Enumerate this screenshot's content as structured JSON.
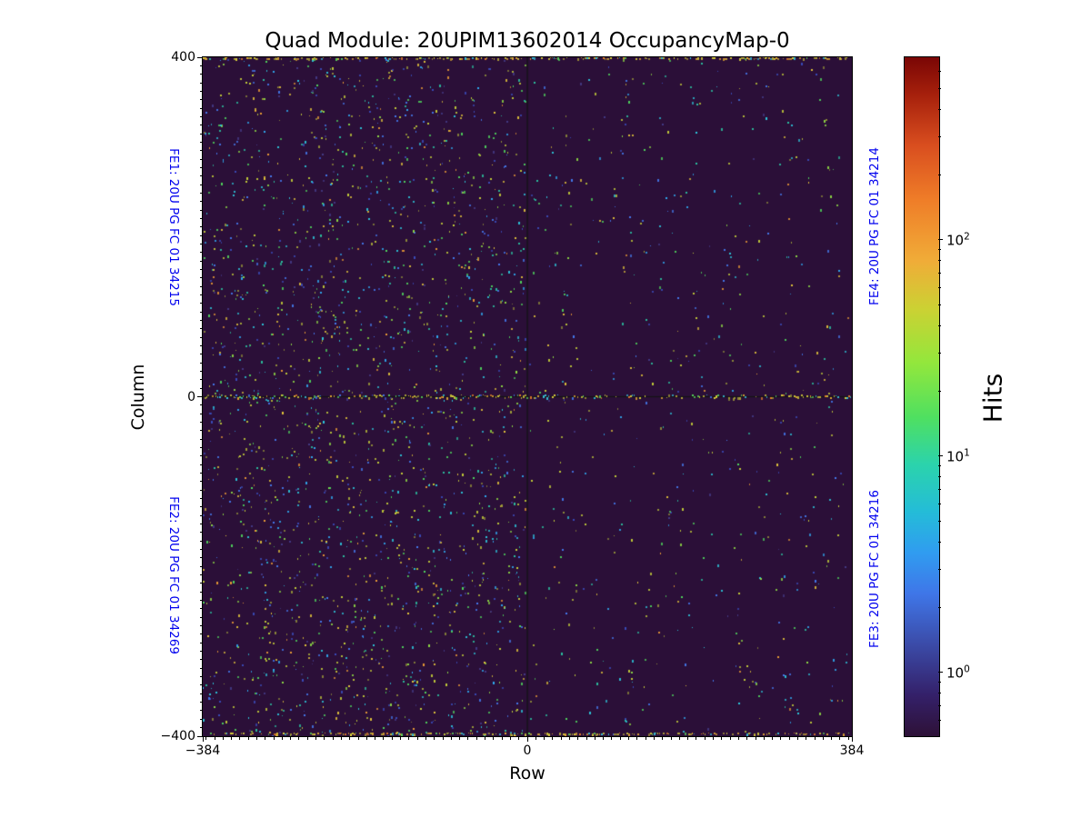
{
  "chart_data": {
    "type": "heatmap",
    "title": "Quad Module: 20UPIM13602014 OccupancyMap-0",
    "xlabel": "Row",
    "ylabel": "Column",
    "xlim": [
      -384,
      384
    ],
    "ylim": [
      -400,
      400
    ],
    "x_major_ticks": [
      {
        "value": -384,
        "label": "−384"
      },
      {
        "value": 0,
        "label": "0"
      },
      {
        "value": 384,
        "label": "384"
      }
    ],
    "y_major_ticks": [
      {
        "value": 400,
        "label": "400"
      },
      {
        "value": 0,
        "label": "0"
      },
      {
        "value": -400,
        "label": "−400"
      }
    ],
    "minor_tick_step_units": 10,
    "fe_label_color": "#0000ee",
    "fe_labels": {
      "top_left": "FE1: 20U PG FC 01 34215",
      "bottom_left": "FE2: 20U PG FC 01 34269",
      "top_right": "FE4: 20U PG FC 01 34214",
      "bottom_right": "FE3: 20U PG FC 01 34216"
    },
    "colormap": "turbo",
    "colorbar": {
      "label": "Hits",
      "scale": "log",
      "range": [
        0.507,
        697
      ],
      "major_ticks": [
        {
          "value": 1,
          "base": "10",
          "exp": "0"
        },
        {
          "value": 10,
          "base": "10",
          "exp": "1"
        },
        {
          "value": 100,
          "base": "10",
          "exp": "2"
        }
      ],
      "minor_mantissas": [
        2,
        3,
        4,
        5,
        6,
        7,
        8,
        9
      ],
      "gradient_stops": [
        {
          "pos": 0.0,
          "color": "#2e1137"
        },
        {
          "pos": 0.06,
          "color": "#342069"
        },
        {
          "pos": 0.135,
          "color": "#3b4ba8"
        },
        {
          "pos": 0.21,
          "color": "#3f76e8"
        },
        {
          "pos": 0.27,
          "color": "#309cf0"
        },
        {
          "pos": 0.33,
          "color": "#24bcd8"
        },
        {
          "pos": 0.4,
          "color": "#2bd3ac"
        },
        {
          "pos": 0.47,
          "color": "#4fe060"
        },
        {
          "pos": 0.55,
          "color": "#93e73c"
        },
        {
          "pos": 0.63,
          "color": "#ccd133"
        },
        {
          "pos": 0.7,
          "color": "#f0ac38"
        },
        {
          "pos": 0.79,
          "color": "#ef7d28"
        },
        {
          "pos": 0.87,
          "color": "#d94e1f"
        },
        {
          "pos": 0.945,
          "color": "#a6200c"
        },
        {
          "pos": 1.0,
          "color": "#7a0605"
        }
      ]
    },
    "description": "Pixel-hit occupancy map of a quad module with four front-end chips (FE1/FE2 left, FE4/FE3 right). Sparse random noise hits on a near-zero background; elevated occupancy along column 0 and the ±400 column edges; the left half (FE1/FE2) is noticeably noisier than the right half (FE4/FE3). Black separator line at row 0.",
    "heatmap": {
      "background_color": "#2b0f38",
      "separator_line_color": "#141414",
      "seed": 20140213,
      "scatter": {
        "left_half_count": 2300,
        "right_half_count": 640,
        "palette": [
          {
            "color": "#3a4bb8",
            "weight": 0.1
          },
          {
            "color": "#4479ec",
            "weight": 0.1
          },
          {
            "color": "#2fa8ee",
            "weight": 0.06
          },
          {
            "color": "#2cc3d8",
            "weight": 0.1
          },
          {
            "color": "#2bbf9e",
            "weight": 0.07
          },
          {
            "color": "#4fd45c",
            "weight": 0.09
          },
          {
            "color": "#8cd844",
            "weight": 0.07
          },
          {
            "color": "#c2cc38",
            "weight": 0.14
          },
          {
            "color": "#8f8c38",
            "weight": 0.08
          },
          {
            "color": "#dfc23a",
            "weight": 0.08
          },
          {
            "color": "#e89a34",
            "weight": 0.05
          },
          {
            "color": "#433a86",
            "weight": 0.06
          }
        ]
      },
      "hot_row_column0": {
        "coverage": 0.6,
        "palette": [
          {
            "color": "#d8cf3a",
            "weight": 0.3
          },
          {
            "color": "#a8a236",
            "weight": 0.15
          },
          {
            "color": "#e0a832",
            "weight": 0.15
          },
          {
            "color": "#58d05a",
            "weight": 0.12
          },
          {
            "color": "#38c2da",
            "weight": 0.13
          },
          {
            "color": "#4479ec",
            "weight": 0.08
          },
          {
            "color": "#e87f2a",
            "weight": 0.07
          }
        ]
      },
      "hot_edge_rows": {
        "coverage": 0.52,
        "palette": [
          {
            "color": "#d8cf3a",
            "weight": 0.4
          },
          {
            "color": "#e0a832",
            "weight": 0.2
          },
          {
            "color": "#a89a36",
            "weight": 0.15
          },
          {
            "color": "#58cf5a",
            "weight": 0.08
          },
          {
            "color": "#38c2da",
            "weight": 0.09
          },
          {
            "color": "#e87f2a",
            "weight": 0.08
          }
        ]
      }
    }
  }
}
